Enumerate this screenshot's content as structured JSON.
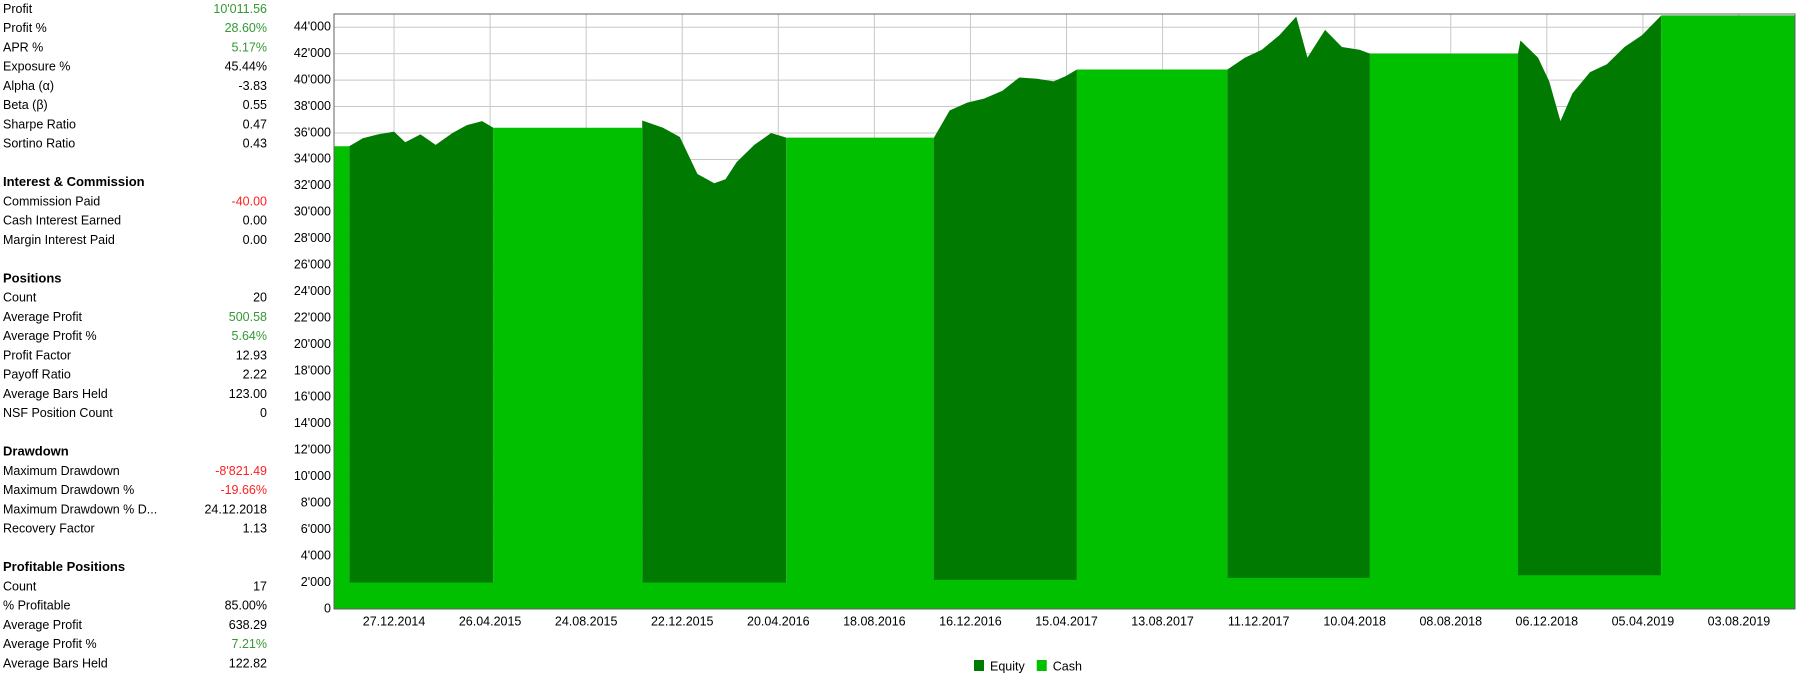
{
  "stats": [
    {
      "rows": [
        {
          "label": "Profit",
          "value": "10'011.56",
          "color": "#339933"
        },
        {
          "label": "Profit %",
          "value": "28.60%",
          "color": "#339933"
        },
        {
          "label": "APR %",
          "value": "5.17%",
          "color": "#339933"
        },
        {
          "label": "Exposure %",
          "value": "45.44%",
          "color": "#000000"
        },
        {
          "label": "Alpha (α)",
          "value": "-3.83",
          "color": "#000000"
        },
        {
          "label": "Beta (β)",
          "value": "0.55",
          "color": "#000000"
        },
        {
          "label": "Sharpe Ratio",
          "value": "0.47",
          "color": "#000000"
        },
        {
          "label": "Sortino Ratio",
          "value": "0.43",
          "color": "#000000"
        }
      ]
    },
    {
      "title": "Interest & Commission",
      "rows": [
        {
          "label": "Commission Paid",
          "value": "-40.00",
          "color": "#ff2020"
        },
        {
          "label": "Cash Interest Earned",
          "value": "0.00",
          "color": "#000000"
        },
        {
          "label": "Margin Interest Paid",
          "value": "0.00",
          "color": "#000000"
        }
      ]
    },
    {
      "title": "Positions",
      "rows": [
        {
          "label": "Count",
          "value": "20",
          "color": "#000000"
        },
        {
          "label": "Average Profit",
          "value": "500.58",
          "color": "#339933"
        },
        {
          "label": "Average Profit %",
          "value": "5.64%",
          "color": "#339933"
        },
        {
          "label": "Profit Factor",
          "value": "12.93",
          "color": "#000000"
        },
        {
          "label": "Payoff Ratio",
          "value": "2.22",
          "color": "#000000"
        },
        {
          "label": "Average Bars Held",
          "value": "123.00",
          "color": "#000000"
        },
        {
          "label": "NSF Position Count",
          "value": "0",
          "color": "#000000"
        }
      ]
    },
    {
      "title": "Drawdown",
      "rows": [
        {
          "label": "Maximum Drawdown",
          "value": "-8'821.49",
          "color": "#ff2020"
        },
        {
          "label": "Maximum Drawdown %",
          "value": "-19.66%",
          "color": "#ff2020"
        },
        {
          "label": "Maximum Drawdown % D...",
          "value": "24.12.2018",
          "color": "#000000"
        },
        {
          "label": "Recovery Factor",
          "value": "1.13",
          "color": "#000000"
        }
      ]
    },
    {
      "title": "Profitable Positions",
      "rows": [
        {
          "label": "Count",
          "value": "17",
          "color": "#000000"
        },
        {
          "label": "% Profitable",
          "value": "85.00%",
          "color": "#000000"
        },
        {
          "label": "Average Profit",
          "value": "638.29",
          "color": "#000000"
        },
        {
          "label": "Average Profit %",
          "value": "7.21%",
          "color": "#339933"
        },
        {
          "label": "Average Bars Held",
          "value": "122.82",
          "color": "#000000"
        }
      ]
    }
  ],
  "chart_data": {
    "type": "area",
    "xlim": [
      "13.10.2014",
      "12.10.2019"
    ],
    "xticks": [
      "27.12.2014",
      "26.04.2015",
      "24.08.2015",
      "22.12.2015",
      "20.04.2016",
      "18.08.2016",
      "16.12.2016",
      "15.04.2017",
      "13.08.2017",
      "11.12.2017",
      "10.04.2018",
      "08.08.2018",
      "06.12.2018",
      "05.04.2019",
      "03.08.2019"
    ],
    "ylim": [
      0,
      45000
    ],
    "yticks": [
      0,
      {
        "value": 2000,
        "label": "2'000"
      },
      {
        "value": 4000,
        "label": "4'000"
      },
      {
        "value": 6000,
        "label": "6'000"
      },
      {
        "value": 8000,
        "label": "8'000"
      },
      {
        "value": 10000,
        "label": "10'000"
      },
      {
        "value": 12000,
        "label": "12'000"
      },
      {
        "value": 14000,
        "label": "14'000"
      },
      {
        "value": 16000,
        "label": "16'000"
      },
      {
        "value": 18000,
        "label": "18'000"
      },
      {
        "value": 20000,
        "label": "20'000"
      },
      {
        "value": 22000,
        "label": "22'000"
      },
      {
        "value": 24000,
        "label": "24'000"
      },
      {
        "value": 26000,
        "label": "26'000"
      },
      {
        "value": 28000,
        "label": "28'000"
      },
      {
        "value": 30000,
        "label": "30'000"
      },
      {
        "value": 32000,
        "label": "32'000"
      },
      {
        "value": 34000,
        "label": "34'000"
      },
      {
        "value": 36000,
        "label": "36'000"
      },
      {
        "value": 38000,
        "label": "38'000"
      },
      {
        "value": 40000,
        "label": "40'000"
      },
      {
        "value": 42000,
        "label": "42'000"
      },
      {
        "value": 44000,
        "label": "44'000"
      }
    ],
    "grid": true,
    "legend": "bottom",
    "series": [
      {
        "name": "Equity",
        "color": "#007a00",
        "x": [
          "01.11.2014",
          "18.11.2014",
          "07.12.2014",
          "27.12.2014",
          "10.01.2015",
          "29.01.2015",
          "17.02.2015",
          "10.03.2015",
          "28.03.2015",
          "16.04.2015",
          "30.04.2015",
          null,
          "02.11.2015",
          "28.11.2015",
          "19.12.2015",
          "10.01.2016",
          "31.01.2016",
          "14.02.2016",
          "28.02.2016",
          "21.03.2016",
          "11.04.2016",
          "30.04.2016",
          null,
          "31.10.2016",
          "20.11.2016",
          "12.12.2016",
          "02.01.2017",
          "25.01.2017",
          "15.02.2017",
          "09.03.2017",
          "30.03.2017",
          "14.04.2017",
          "28.04.2017",
          null,
          "02.11.2017",
          "24.11.2017",
          "15.12.2017",
          "06.01.2018",
          "27.01.2018",
          "10.02.2018",
          "04.03.2018",
          "25.03.2018",
          "16.04.2018",
          "29.04.2018",
          null,
          "31.10.2018",
          "03.11.2018",
          "25.11.2018",
          "09.12.2018",
          "23.12.2018",
          "07.01.2019",
          "29.01.2019",
          "19.02.2019",
          "13.03.2019",
          "04.04.2019",
          "28.04.2019"
        ],
        "values": [
          35000,
          35600,
          35900,
          36100,
          35300,
          35900,
          35100,
          36000,
          36600,
          36900,
          36400,
          null,
          36950,
          36400,
          35700,
          32900,
          32200,
          32500,
          33800,
          35100,
          36000,
          35650,
          null,
          35600,
          37700,
          38300,
          38600,
          39200,
          40200,
          40100,
          39900,
          40300,
          40800,
          null,
          40800,
          41700,
          42300,
          43400,
          44800,
          41700,
          43800,
          42500,
          42300,
          42000,
          null,
          42000,
          43000,
          41700,
          39900,
          36900,
          39000,
          40600,
          41200,
          42500,
          43400,
          44900
        ]
      },
      {
        "name": "Cash",
        "color": "#00c000",
        "step": "post",
        "x": [
          "13.10.2014",
          "01.11.2014",
          "30.04.2015",
          "02.11.2015",
          "30.04.2016",
          "31.10.2016",
          "28.04.2017",
          "02.11.2017",
          "29.04.2018",
          "31.10.2018",
          "28.04.2019"
        ],
        "values": [
          35000,
          2000,
          36400,
          2000,
          35650,
          2200,
          40800,
          2350,
          42000,
          2550,
          44900
        ]
      }
    ]
  }
}
